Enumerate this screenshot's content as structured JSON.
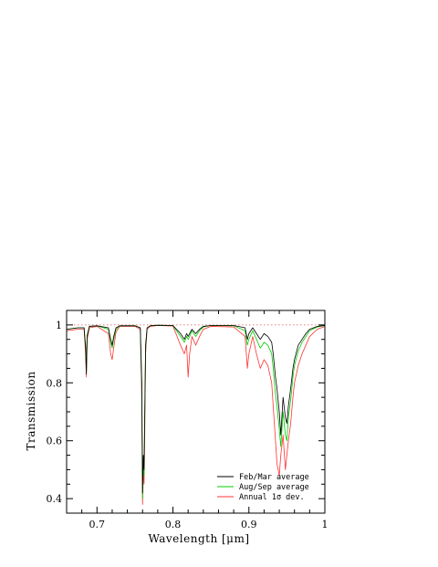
{
  "chart_data": {
    "type": "line",
    "xlabel": "Wavelength [μm]",
    "ylabel": "Transmission",
    "xlim": [
      0.66,
      1.0
    ],
    "ylim": [
      0.35,
      1.05
    ],
    "x_ticks": [
      0.7,
      0.8,
      0.9,
      1.0
    ],
    "x_tick_labels": [
      "0.7",
      "0.8",
      "0.9",
      "1"
    ],
    "y_ticks": [
      0.4,
      0.6,
      0.8,
      1.0
    ],
    "y_tick_labels": [
      "0.4",
      "0.6",
      "0.8",
      "1"
    ],
    "reference_line": {
      "y": 1.0,
      "style": "dotted",
      "color": "#e05050"
    },
    "grid": false,
    "legend_position": "bottom-right",
    "legend": [
      {
        "label": "Feb/Mar average",
        "color": "#000000"
      },
      {
        "label": "Aug/Sep average",
        "color": "#00cc00"
      },
      {
        "label": "Annual 1σ dev.",
        "color": "#ff3333"
      }
    ],
    "series": [
      {
        "name": "Feb/Mar average",
        "color": "#000000",
        "x": [
          0.66,
          0.675,
          0.683,
          0.685,
          0.686,
          0.687,
          0.69,
          0.7,
          0.715,
          0.718,
          0.72,
          0.722,
          0.725,
          0.73,
          0.75,
          0.757,
          0.759,
          0.76,
          0.761,
          0.762,
          0.763,
          0.764,
          0.766,
          0.77,
          0.78,
          0.8,
          0.81,
          0.815,
          0.818,
          0.82,
          0.822,
          0.825,
          0.83,
          0.835,
          0.84,
          0.85,
          0.88,
          0.895,
          0.898,
          0.9,
          0.905,
          0.91,
          0.915,
          0.92,
          0.925,
          0.93,
          0.932,
          0.935,
          0.937,
          0.94,
          0.942,
          0.945,
          0.948,
          0.95,
          0.952,
          0.955,
          0.958,
          0.96,
          0.965,
          0.97,
          0.975,
          0.98,
          0.99,
          1.0
        ],
        "y": [
          0.985,
          0.99,
          0.99,
          0.92,
          0.83,
          0.96,
          0.995,
          0.997,
          0.99,
          0.95,
          0.93,
          0.96,
          0.99,
          0.997,
          0.997,
          0.99,
          0.8,
          0.42,
          0.55,
          0.5,
          0.72,
          0.93,
          0.99,
          0.997,
          0.999,
          0.998,
          0.97,
          0.95,
          0.97,
          0.96,
          0.97,
          0.985,
          0.97,
          0.985,
          0.995,
          0.998,
          0.998,
          0.99,
          0.95,
          0.97,
          0.99,
          0.97,
          0.95,
          0.97,
          0.96,
          0.94,
          0.9,
          0.82,
          0.78,
          0.7,
          0.62,
          0.75,
          0.68,
          0.66,
          0.72,
          0.78,
          0.85,
          0.88,
          0.93,
          0.95,
          0.97,
          0.985,
          0.995,
          0.998
        ]
      },
      {
        "name": "Aug/Sep average",
        "color": "#00cc00",
        "x": [
          0.66,
          0.675,
          0.683,
          0.685,
          0.686,
          0.687,
          0.69,
          0.7,
          0.715,
          0.718,
          0.72,
          0.722,
          0.725,
          0.73,
          0.75,
          0.757,
          0.759,
          0.76,
          0.761,
          0.762,
          0.763,
          0.764,
          0.766,
          0.77,
          0.78,
          0.8,
          0.81,
          0.815,
          0.818,
          0.82,
          0.822,
          0.825,
          0.83,
          0.835,
          0.84,
          0.85,
          0.88,
          0.895,
          0.898,
          0.9,
          0.905,
          0.91,
          0.915,
          0.92,
          0.925,
          0.93,
          0.932,
          0.935,
          0.937,
          0.94,
          0.942,
          0.945,
          0.948,
          0.95,
          0.952,
          0.955,
          0.958,
          0.96,
          0.965,
          0.97,
          0.975,
          0.98,
          0.99,
          1.0
        ],
        "y": [
          0.985,
          0.99,
          0.99,
          0.93,
          0.84,
          0.965,
          0.995,
          0.997,
          0.985,
          0.94,
          0.92,
          0.95,
          0.985,
          0.997,
          0.997,
          0.99,
          0.78,
          0.4,
          0.53,
          0.48,
          0.7,
          0.92,
          0.99,
          0.997,
          0.999,
          0.998,
          0.96,
          0.94,
          0.96,
          0.95,
          0.96,
          0.98,
          0.96,
          0.98,
          0.993,
          0.998,
          0.997,
          0.98,
          0.93,
          0.95,
          0.98,
          0.95,
          0.92,
          0.94,
          0.93,
          0.9,
          0.85,
          0.76,
          0.72,
          0.64,
          0.58,
          0.7,
          0.62,
          0.6,
          0.68,
          0.74,
          0.82,
          0.86,
          0.91,
          0.94,
          0.96,
          0.98,
          0.993,
          0.998
        ]
      },
      {
        "name": "Annual 1σ dev.",
        "color": "#ff3333",
        "x": [
          0.66,
          0.675,
          0.683,
          0.685,
          0.686,
          0.687,
          0.69,
          0.7,
          0.715,
          0.718,
          0.72,
          0.722,
          0.725,
          0.73,
          0.75,
          0.757,
          0.759,
          0.76,
          0.761,
          0.762,
          0.763,
          0.764,
          0.766,
          0.77,
          0.78,
          0.8,
          0.81,
          0.815,
          0.818,
          0.82,
          0.822,
          0.825,
          0.83,
          0.835,
          0.84,
          0.85,
          0.88,
          0.895,
          0.898,
          0.9,
          0.905,
          0.91,
          0.915,
          0.92,
          0.925,
          0.93,
          0.932,
          0.935,
          0.937,
          0.94,
          0.942,
          0.945,
          0.948,
          0.95,
          0.952,
          0.955,
          0.958,
          0.96,
          0.965,
          0.97,
          0.975,
          0.98,
          0.99,
          1.0
        ],
        "y": [
          0.98,
          0.985,
          0.985,
          0.9,
          0.82,
          0.95,
          0.99,
          0.995,
          0.97,
          0.9,
          0.88,
          0.92,
          0.975,
          0.995,
          0.995,
          0.985,
          0.74,
          0.38,
          0.5,
          0.45,
          0.66,
          0.9,
          0.985,
          0.995,
          0.998,
          0.996,
          0.93,
          0.9,
          0.93,
          0.82,
          0.9,
          0.96,
          0.93,
          0.96,
          0.985,
          0.995,
          0.993,
          0.96,
          0.85,
          0.9,
          0.96,
          0.9,
          0.85,
          0.88,
          0.86,
          0.8,
          0.72,
          0.6,
          0.52,
          0.48,
          0.55,
          0.62,
          0.5,
          0.55,
          0.6,
          0.66,
          0.75,
          0.8,
          0.86,
          0.9,
          0.93,
          0.96,
          0.985,
          0.995
        ]
      }
    ]
  }
}
